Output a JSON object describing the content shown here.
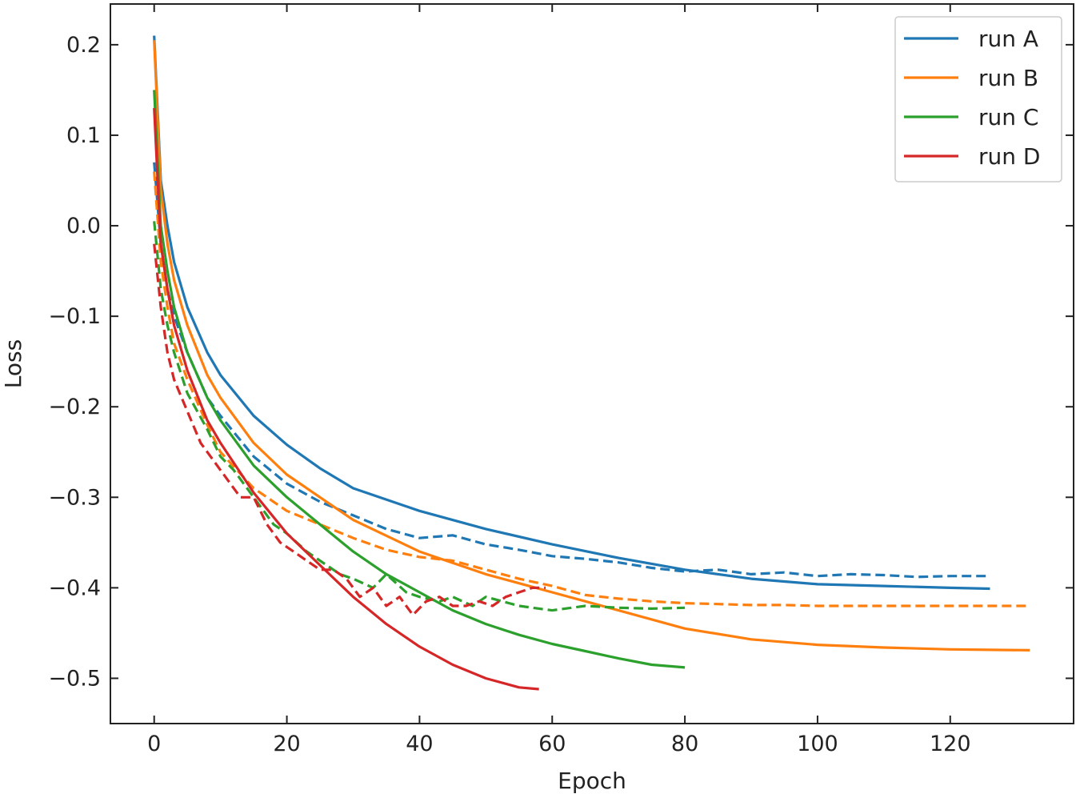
{
  "chart_data": {
    "type": "line",
    "title": "",
    "xlabel": "Epoch",
    "ylabel": "Loss",
    "xlim": [
      -6.6,
      138.6
    ],
    "ylim": [
      -0.55,
      0.245
    ],
    "xticks": [
      0,
      20,
      40,
      60,
      80,
      100,
      120
    ],
    "yticks": [
      -0.5,
      -0.4,
      -0.3,
      -0.2,
      -0.1,
      0.0,
      0.1,
      0.2
    ],
    "xtick_labels": [
      "0",
      "20",
      "40",
      "60",
      "80",
      "100",
      "120"
    ],
    "ytick_labels": [
      "−0.5",
      "−0.4",
      "−0.3",
      "−0.2",
      "−0.1",
      "0.0",
      "0.1",
      "0.2"
    ],
    "grid": false,
    "legend_position": "top-right",
    "series": [
      {
        "name": "run A",
        "color": "#1f77b4",
        "style": "solid",
        "x": [
          0,
          1,
          2,
          3,
          5,
          8,
          10,
          15,
          20,
          25,
          30,
          40,
          50,
          60,
          70,
          80,
          90,
          100,
          110,
          120,
          126
        ],
        "y": [
          0.21,
          0.05,
          0.0,
          -0.04,
          -0.09,
          -0.14,
          -0.165,
          -0.21,
          -0.242,
          -0.268,
          -0.29,
          -0.315,
          -0.335,
          -0.352,
          -0.367,
          -0.38,
          -0.39,
          -0.396,
          -0.398,
          -0.4,
          -0.401
        ]
      },
      {
        "name": "run A",
        "color": "#1f77b4",
        "style": "dashed",
        "x": [
          0,
          1,
          2,
          3,
          5,
          8,
          10,
          15,
          20,
          25,
          30,
          35,
          40,
          45,
          50,
          55,
          60,
          65,
          70,
          75,
          80,
          85,
          90,
          95,
          100,
          105,
          110,
          115,
          120,
          126
        ],
        "y": [
          0.07,
          -0.02,
          -0.07,
          -0.1,
          -0.14,
          -0.19,
          -0.21,
          -0.255,
          -0.285,
          -0.305,
          -0.32,
          -0.335,
          -0.345,
          -0.342,
          -0.352,
          -0.358,
          -0.365,
          -0.368,
          -0.372,
          -0.378,
          -0.382,
          -0.38,
          -0.385,
          -0.383,
          -0.387,
          -0.385,
          -0.386,
          -0.388,
          -0.387,
          -0.387
        ]
      },
      {
        "name": "run B",
        "color": "#ff7f0e",
        "style": "solid",
        "x": [
          0,
          1,
          2,
          3,
          5,
          8,
          10,
          15,
          20,
          25,
          30,
          40,
          50,
          60,
          70,
          80,
          90,
          100,
          110,
          120,
          132
        ],
        "y": [
          0.205,
          0.04,
          -0.02,
          -0.06,
          -0.11,
          -0.165,
          -0.19,
          -0.24,
          -0.275,
          -0.3,
          -0.325,
          -0.36,
          -0.385,
          -0.405,
          -0.425,
          -0.445,
          -0.457,
          -0.463,
          -0.466,
          -0.468,
          -0.469
        ]
      },
      {
        "name": "run B",
        "color": "#ff7f0e",
        "style": "dashed",
        "x": [
          0,
          1,
          2,
          3,
          5,
          8,
          10,
          15,
          20,
          25,
          30,
          35,
          40,
          45,
          50,
          55,
          60,
          65,
          70,
          75,
          80,
          85,
          90,
          95,
          100,
          105,
          110,
          115,
          120,
          125,
          132
        ],
        "y": [
          0.06,
          -0.04,
          -0.09,
          -0.13,
          -0.17,
          -0.22,
          -0.25,
          -0.29,
          -0.315,
          -0.33,
          -0.345,
          -0.358,
          -0.366,
          -0.37,
          -0.38,
          -0.39,
          -0.398,
          -0.408,
          -0.412,
          -0.415,
          -0.417,
          -0.418,
          -0.419,
          -0.419,
          -0.42,
          -0.42,
          -0.42,
          -0.42,
          -0.42,
          -0.42,
          -0.42
        ]
      },
      {
        "name": "run C",
        "color": "#2ca02c",
        "style": "solid",
        "x": [
          0,
          1,
          2,
          3,
          5,
          8,
          10,
          15,
          20,
          25,
          30,
          35,
          40,
          45,
          50,
          55,
          60,
          65,
          70,
          75,
          80
        ],
        "y": [
          0.15,
          0.0,
          -0.05,
          -0.09,
          -0.14,
          -0.19,
          -0.215,
          -0.265,
          -0.3,
          -0.33,
          -0.36,
          -0.385,
          -0.405,
          -0.425,
          -0.44,
          -0.452,
          -0.462,
          -0.47,
          -0.478,
          -0.485,
          -0.488
        ]
      },
      {
        "name": "run C",
        "color": "#2ca02c",
        "style": "dashed",
        "x": [
          0,
          1,
          2,
          3,
          5,
          8,
          10,
          12,
          15,
          18,
          20,
          23,
          25,
          28,
          30,
          33,
          35,
          38,
          40,
          43,
          45,
          48,
          50,
          55,
          60,
          65,
          70,
          75,
          80
        ],
        "y": [
          0.005,
          -0.07,
          -0.11,
          -0.14,
          -0.185,
          -0.225,
          -0.255,
          -0.27,
          -0.3,
          -0.33,
          -0.34,
          -0.36,
          -0.37,
          -0.385,
          -0.39,
          -0.4,
          -0.385,
          -0.405,
          -0.41,
          -0.415,
          -0.41,
          -0.42,
          -0.41,
          -0.42,
          -0.425,
          -0.42,
          -0.422,
          -0.423,
          -0.422
        ]
      },
      {
        "name": "run D",
        "color": "#d62728",
        "style": "solid",
        "x": [
          0,
          1,
          2,
          3,
          5,
          8,
          10,
          15,
          20,
          25,
          30,
          35,
          40,
          45,
          50,
          55,
          58
        ],
        "y": [
          0.13,
          -0.02,
          -0.07,
          -0.11,
          -0.16,
          -0.215,
          -0.24,
          -0.295,
          -0.34,
          -0.375,
          -0.41,
          -0.44,
          -0.465,
          -0.485,
          -0.5,
          -0.51,
          -0.512
        ]
      },
      {
        "name": "run D",
        "color": "#d62728",
        "style": "dashed",
        "x": [
          0,
          1,
          2,
          3,
          5,
          7,
          9,
          11,
          13,
          15,
          17,
          19,
          21,
          23,
          25,
          27,
          29,
          31,
          33,
          35,
          37,
          39,
          41,
          43,
          45,
          47,
          49,
          51,
          53,
          55,
          57,
          59
        ],
        "y": [
          -0.02,
          -0.09,
          -0.14,
          -0.17,
          -0.205,
          -0.24,
          -0.26,
          -0.28,
          -0.3,
          -0.3,
          -0.33,
          -0.35,
          -0.36,
          -0.37,
          -0.38,
          -0.38,
          -0.39,
          -0.41,
          -0.4,
          -0.42,
          -0.41,
          -0.43,
          -0.415,
          -0.41,
          -0.42,
          -0.42,
          -0.415,
          -0.42,
          -0.41,
          -0.405,
          -0.4,
          -0.4
        ]
      }
    ],
    "legend": [
      {
        "name": "run A",
        "color": "#1f77b4"
      },
      {
        "name": "run B",
        "color": "#ff7f0e"
      },
      {
        "name": "run C",
        "color": "#2ca02c"
      },
      {
        "name": "run D",
        "color": "#d62728"
      }
    ]
  }
}
